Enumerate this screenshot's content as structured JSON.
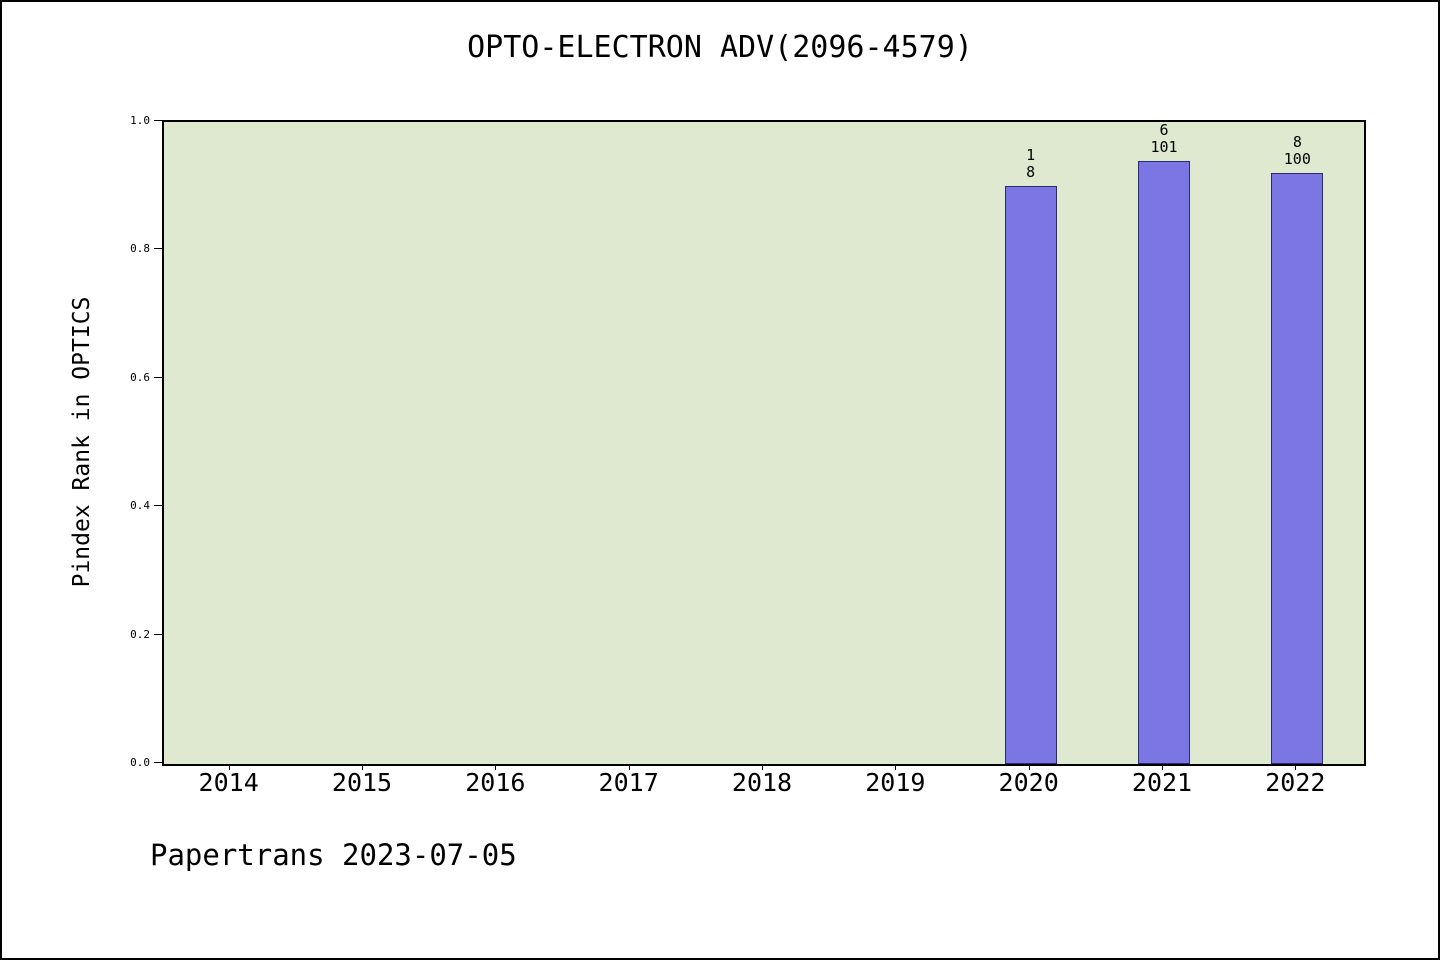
{
  "title": "OPTO-ELECTRON ADV(2096-4579)",
  "footer": "Papertrans 2023-07-05",
  "colors": {
    "bar": "#7b76e3",
    "bar_border": "#2a2a6e",
    "plot_background": "#dfe9cf",
    "page_background": "#ffffff",
    "axis": "#000000"
  },
  "chart_data": {
    "type": "bar",
    "title": "OPTO-ELECTRON ADV(2096-4579)",
    "xlabel": "",
    "ylabel": "Pindex Rank in OPTICS",
    "categories": [
      "2014",
      "2015",
      "2016",
      "2017",
      "2018",
      "2019",
      "2020",
      "2021",
      "2022"
    ],
    "values": [
      null,
      null,
      null,
      null,
      null,
      null,
      0.9,
      0.94,
      0.92
    ],
    "bar_labels": [
      null,
      null,
      null,
      null,
      null,
      null,
      [
        "1",
        "8"
      ],
      [
        "6",
        "101"
      ],
      [
        "8",
        "100"
      ]
    ],
    "ylim": [
      0.0,
      1.0
    ],
    "yticks": [
      "0.0",
      "0.2",
      "0.4",
      "0.6",
      "0.8",
      "1.0"
    ],
    "grid": false,
    "legend": "none"
  }
}
